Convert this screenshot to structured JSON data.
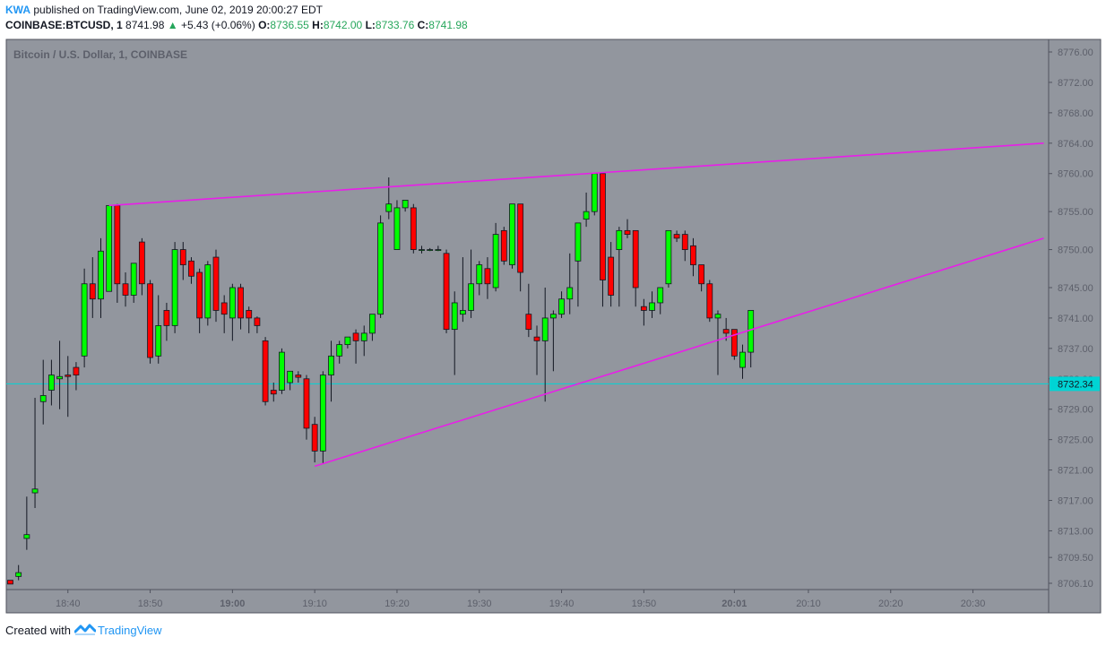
{
  "header": {
    "author": "KWA",
    "published_text": "published on TradingView.com, June 02, 2019 20:00:27 EDT",
    "symbol": "COINBASE:BTCUSD, 1",
    "last_price": "8741.98",
    "change": "+5.43 (+0.06%)",
    "o_label": "O:",
    "o_value": "8736.55",
    "h_label": "H:",
    "h_value": "8742.00",
    "l_label": "L:",
    "l_value": "8733.76",
    "c_label": "C:",
    "c_value": "8741.98"
  },
  "footer": {
    "created_with": "Created with",
    "brand": "TradingView"
  },
  "colors": {
    "background": "#92969e",
    "up_candle": "#00ff00",
    "down_candle": "#ff0000",
    "wick": "#131722",
    "trendline": "#e91ee9",
    "price_line": "#00d4d4"
  },
  "chart_data": {
    "type": "candlestick",
    "title": "Bitcoin / U.S. Dollar, 1, COINBASE",
    "y_ticks": [
      "8776.00",
      "8772.00",
      "8768.00",
      "8764.00",
      "8760.00",
      "8755.00",
      "8750.00",
      "8745.00",
      "8741.00",
      "8737.00",
      "8733.00",
      "8729.00",
      "8725.00",
      "8721.00",
      "8717.00",
      "8713.00",
      "8709.50",
      "8706.10"
    ],
    "x_ticks": [
      {
        "label": "18:40",
        "min": 40,
        "bold": false
      },
      {
        "label": "18:50",
        "min": 50,
        "bold": false
      },
      {
        "label": "19:00",
        "min": 60,
        "bold": true
      },
      {
        "label": "19:10",
        "min": 70,
        "bold": false
      },
      {
        "label": "19:20",
        "min": 80,
        "bold": false
      },
      {
        "label": "19:30",
        "min": 90,
        "bold": false
      },
      {
        "label": "19:40",
        "min": 100,
        "bold": false
      },
      {
        "label": "19:50",
        "min": 110,
        "bold": false
      },
      {
        "label": "20:01",
        "min": 121,
        "bold": true
      },
      {
        "label": "20:10",
        "min": 130,
        "bold": false
      },
      {
        "label": "20:20",
        "min": 140,
        "bold": false
      },
      {
        "label": "20:30",
        "min": 150,
        "bold": false
      }
    ],
    "ylim": [
      8705.0,
      8778.0
    ],
    "x_unit": "minutes after 18:00",
    "xlim": [
      32.5,
      158.6
    ],
    "current_price_label": "8732.34",
    "current_price": 8732.34,
    "candles": [
      [
        33,
        8706.5,
        8706.5,
        8706.0,
        8706.0
      ],
      [
        34,
        8707.0,
        8708.5,
        8707.5,
        8706.5
      ],
      [
        35,
        8712.0,
        8717.5,
        8712.5,
        8710.5
      ],
      [
        36,
        8718.0,
        8730.5,
        8718.5,
        8716.0
      ],
      [
        37,
        8730.0,
        8735.5,
        8730.8,
        8727.0
      ],
      [
        38,
        8731.5,
        8735.5,
        8733.5,
        8729.5
      ],
      [
        39,
        8733.0,
        8738.0,
        8733.3,
        8729.0
      ],
      [
        40,
        8733.5,
        8736.0,
        8733.3,
        8728.0
      ],
      [
        41,
        8734.5,
        8735.2,
        8733.5,
        8731.5
      ],
      [
        42,
        8736.0,
        8747.5,
        8745.5,
        8734.5
      ],
      [
        43,
        8745.5,
        8749.0,
        8743.5,
        8741.0
      ],
      [
        44,
        8743.5,
        8751.5,
        8749.8,
        8741.0
      ],
      [
        45,
        8744.5,
        8755.8,
        8755.8,
        8744.5
      ],
      [
        46,
        8755.8,
        8756.0,
        8745.5,
        8743.0
      ],
      [
        47,
        8745.5,
        8747.0,
        8744.0,
        8742.5
      ],
      [
        48,
        8744.0,
        8748.2,
        8748.2,
        8743.0
      ],
      [
        49,
        8751.0,
        8751.5,
        8745.5,
        8744.0
      ],
      [
        50,
        8745.5,
        8746.0,
        8735.8,
        8735.0
      ],
      [
        51,
        8736.0,
        8744.0,
        8740.0,
        8735.0
      ],
      [
        52,
        8742.0,
        8743.0,
        8740.0,
        8738.0
      ],
      [
        53,
        8740.0,
        8751.0,
        8750.0,
        8739.0
      ],
      [
        54,
        8750.0,
        8751.0,
        8748.0,
        8746.0
      ],
      [
        55,
        8748.5,
        8749.0,
        8746.5,
        8745.5
      ],
      [
        56,
        8747.0,
        8747.5,
        8741.0,
        8739.0
      ],
      [
        57,
        8741.0,
        8748.5,
        8748.0,
        8740.0
      ],
      [
        58,
        8749.0,
        8750.0,
        8742.0,
        8740.5
      ],
      [
        59,
        8743.0,
        8744.0,
        8741.5,
        8739.0
      ],
      [
        60,
        8741.0,
        8745.5,
        8745.0,
        8738.0
      ],
      [
        61,
        8745.0,
        8745.5,
        8741.0,
        8739.5
      ],
      [
        62,
        8742.0,
        8742.5,
        8741.0,
        8739.0
      ],
      [
        63,
        8741.0,
        8741.2,
        8740.0,
        8739.0
      ],
      [
        64,
        8738.0,
        8738.5,
        8730.0,
        8729.5
      ],
      [
        65,
        8731.5,
        8732.5,
        8731.0,
        8730.0
      ],
      [
        66,
        8731.5,
        8737.0,
        8736.5,
        8731.0
      ],
      [
        67,
        8732.5,
        8734.0,
        8734.0,
        8731.5
      ],
      [
        68,
        8733.5,
        8734.0,
        8733.2,
        8732.5
      ],
      [
        69,
        8733.0,
        8733.5,
        8726.5,
        8725.0
      ],
      [
        70,
        8727.0,
        8728.0,
        8723.5,
        8722.0
      ],
      [
        71,
        8723.5,
        8734.0,
        8733.5,
        8721.8
      ],
      [
        72,
        8733.5,
        8738.0,
        8736.0,
        8730.0
      ],
      [
        73,
        8736.0,
        8738.0,
        8737.5,
        8735.0
      ],
      [
        74,
        8737.5,
        8738.5,
        8738.5,
        8737.0
      ],
      [
        75,
        8739.0,
        8739.5,
        8738.0,
        8735.0
      ],
      [
        76,
        8738.0,
        8740.0,
        8739.0,
        8736.0
      ],
      [
        77,
        8739.0,
        8741.5,
        8741.5,
        8738.0
      ],
      [
        78,
        8741.5,
        8754.5,
        8753.5,
        8741.0
      ],
      [
        79,
        8755.0,
        8759.5,
        8756.0,
        8754.0
      ],
      [
        80,
        8750.0,
        8756.5,
        8755.5,
        8750.0
      ],
      [
        81,
        8755.5,
        8756.5,
        8756.5,
        8755.0
      ],
      [
        82,
        8755.5,
        8756.0,
        8750.0,
        8749.5
      ],
      [
        83,
        8750.0,
        8750.5,
        8750.0,
        8749.5
      ],
      [
        84,
        8750.0,
        8750.2,
        8750.0,
        8749.8
      ],
      [
        85,
        8750.0,
        8750.5,
        8750.0,
        8749.8
      ],
      [
        86,
        8749.5,
        8750.0,
        8739.5,
        8739.0
      ],
      [
        87,
        8739.5,
        8744.5,
        8743.0,
        8733.5
      ],
      [
        88,
        8741.5,
        8749.0,
        8742.0,
        8740.5
      ],
      [
        89,
        8742.0,
        8750.0,
        8745.5,
        8741.0
      ],
      [
        90,
        8745.5,
        8748.5,
        8748.0,
        8744.0
      ],
      [
        91,
        8747.5,
        8749.0,
        8745.5,
        8743.5
      ],
      [
        92,
        8745.0,
        8753.5,
        8752.0,
        8744.5
      ],
      [
        93,
        8752.5,
        8753.0,
        8748.5,
        8748.0
      ],
      [
        94,
        8748.0,
        8756.0,
        8756.0,
        8747.5
      ],
      [
        95,
        8756.0,
        8756.0,
        8747.0,
        8744.5
      ],
      [
        96,
        8741.5,
        8745.5,
        8739.5,
        8738.5
      ],
      [
        97,
        8738.5,
        8740.0,
        8738.0,
        8733.5
      ],
      [
        98,
        8738.0,
        8745.0,
        8741.0,
        8730.0
      ],
      [
        99,
        8741.0,
        8742.0,
        8741.5,
        8734.0
      ],
      [
        100,
        8741.5,
        8744.5,
        8743.5,
        8741.0
      ],
      [
        101,
        8743.5,
        8749.5,
        8745.0,
        8741.5
      ],
      [
        102,
        8748.5,
        8753.5,
        8753.5,
        8742.5
      ],
      [
        103,
        8754.0,
        8757.5,
        8755.0,
        8753.0
      ],
      [
        104,
        8755.0,
        8760.0,
        8760.0,
        8754.5
      ],
      [
        105,
        8760.0,
        8760.0,
        8746.0,
        8742.5
      ],
      [
        106,
        8749.0,
        8751.0,
        8744.0,
        8742.5
      ],
      [
        107,
        8750.0,
        8753.0,
        8752.5,
        8742.5
      ],
      [
        108,
        8752.5,
        8754.0,
        8752.0,
        8751.5
      ],
      [
        109,
        8752.5,
        8752.5,
        8745.0,
        8742.5
      ],
      [
        110,
        8742.5,
        8743.5,
        8742.0,
        8740.0
      ],
      [
        111,
        8742.0,
        8744.5,
        8743.0,
        8741.0
      ],
      [
        112,
        8743.0,
        8745.0,
        8745.0,
        8741.5
      ],
      [
        113,
        8745.5,
        8752.5,
        8752.5,
        8745.0
      ],
      [
        114,
        8752.0,
        8752.5,
        8751.5,
        8751.0
      ],
      [
        115,
        8752.0,
        8752.5,
        8750.0,
        8748.5
      ],
      [
        116,
        8750.5,
        8751.5,
        8748.0,
        8746.5
      ],
      [
        117,
        8748.0,
        8748.0,
        8745.5,
        8744.5
      ],
      [
        118,
        8745.5,
        8746.0,
        8741.0,
        8740.5
      ],
      [
        119,
        8741.0,
        8742.0,
        8741.5,
        8733.5
      ],
      [
        120,
        8739.5,
        8741.0,
        8739.0,
        8738.0
      ],
      [
        121,
        8739.5,
        8739.5,
        8736.0,
        8735.5
      ],
      [
        122,
        8734.5,
        8737.5,
        8736.5,
        8733.0
      ],
      [
        123,
        8736.5,
        8742.0,
        8742.0,
        8734.5
      ]
    ],
    "trendlines": [
      {
        "x1": 45.0,
        "y1": 8755.8,
        "x2": 158.6,
        "y2": 8764.0
      },
      {
        "x1": 70.0,
        "y1": 8721.5,
        "x2": 158.6,
        "y2": 8751.5
      }
    ]
  }
}
